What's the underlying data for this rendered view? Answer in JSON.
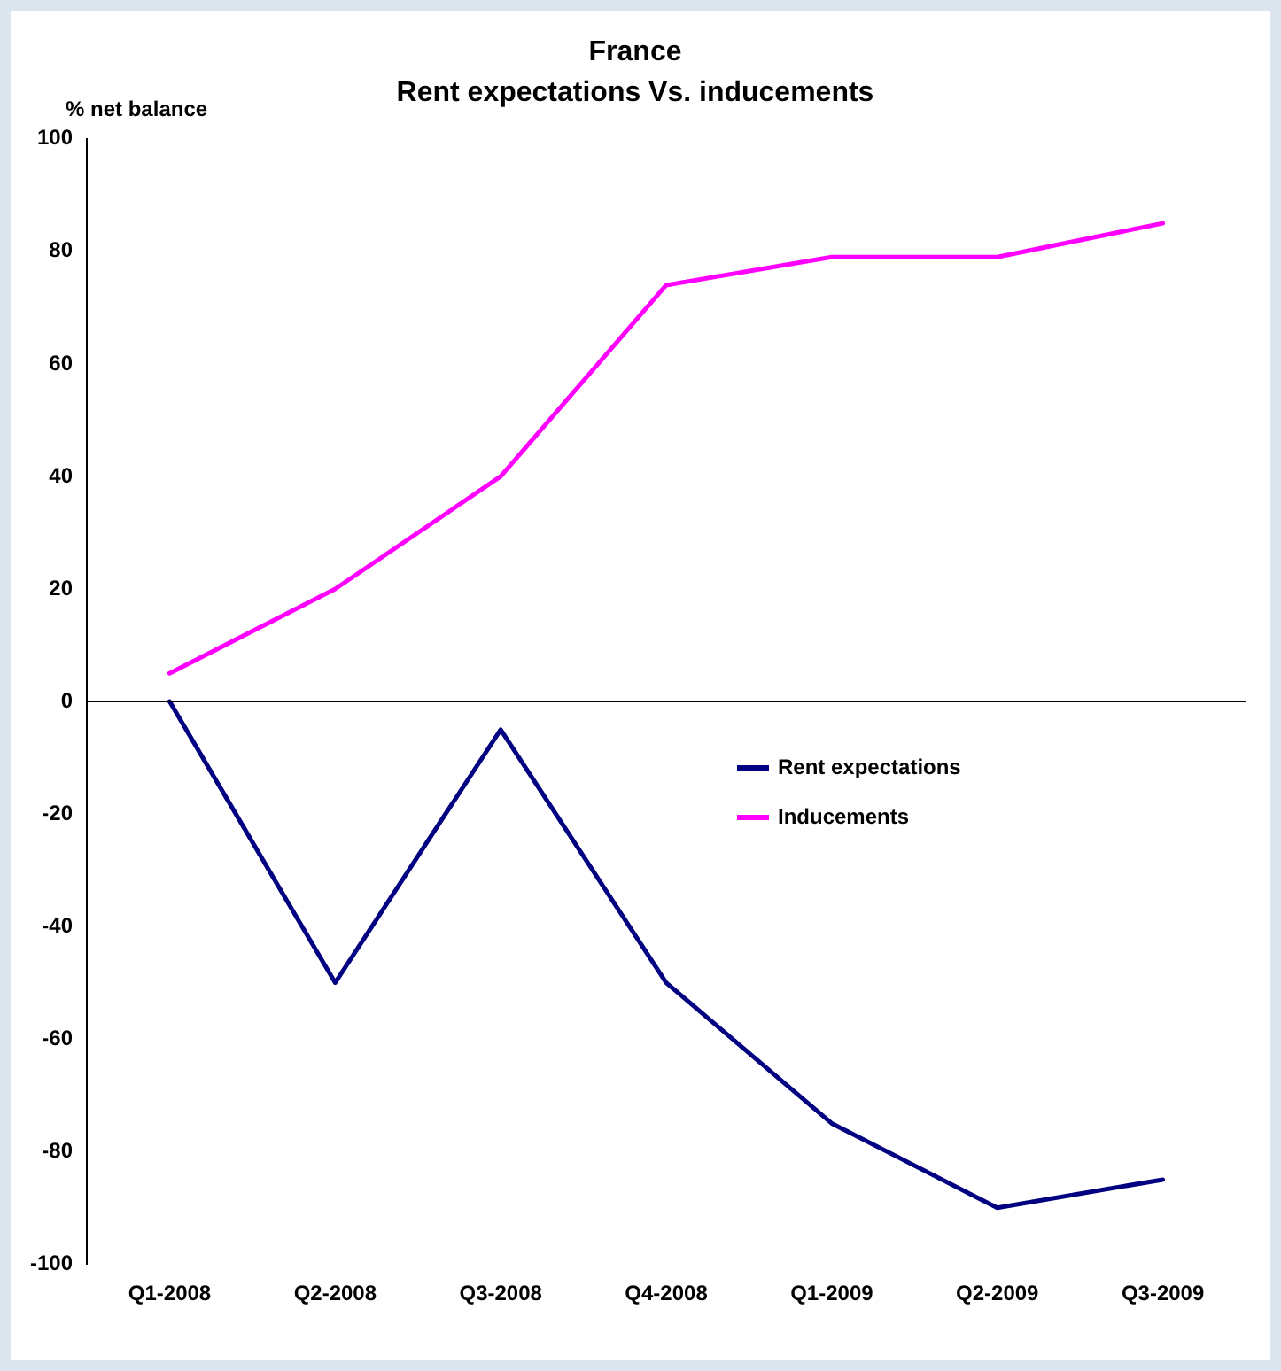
{
  "chart_data": {
    "type": "line",
    "title": "France",
    "subtitle": "Rent expectations Vs. inducements",
    "ylabel": "% net balance",
    "categories": [
      "Q1-2008",
      "Q2-2008",
      "Q3-2008",
      "Q4-2008",
      "Q1-2009",
      "Q2-2009",
      "Q3-2009"
    ],
    "series": [
      {
        "name": "Rent expectations",
        "color": "#000080",
        "values": [
          0,
          -50,
          -5,
          -50,
          -75,
          -90,
          -85
        ]
      },
      {
        "name": "Inducements",
        "color": "#ff00ff",
        "values": [
          5,
          20,
          40,
          74,
          79,
          79,
          85
        ]
      }
    ],
    "ylim": [
      -100,
      100
    ],
    "yticks": [
      -100,
      -80,
      -60,
      -40,
      -20,
      0,
      20,
      40,
      60,
      80,
      100
    ],
    "ref_lines": [
      {
        "axis": "y",
        "value": 0,
        "color": "#000000"
      }
    ],
    "grid": false,
    "legend": "right",
    "marker": "none",
    "line_style": "solid"
  }
}
